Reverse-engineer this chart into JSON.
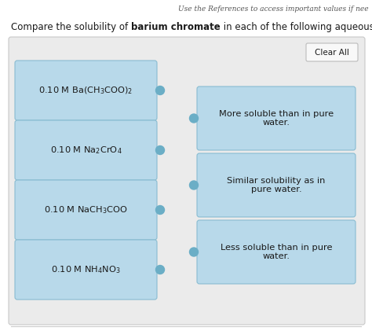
{
  "title_top": "Use the References to access important values if nee",
  "title_prefix": "Compare the solubility of ",
  "title_bold": "barium chromate",
  "title_suffix": " in each of the following aqueous solutions:",
  "clear_all_label": "Clear All",
  "left_labels": [
    "0.10 M Ba(CH$_3$COO)$_2$",
    "0.10 M Na$_2$CrO$_4$",
    "0.10 M NaCH$_3$COO",
    "0.10 M NH$_4$NO$_3$"
  ],
  "right_labels": [
    "More soluble than in pure\nwater.",
    "Similar solubility as in\npure water.",
    "Less soluble than in pure\nwater."
  ],
  "box_fill": "#b8d9ea",
  "box_edge": "#89bcd1",
  "panel_fill": "#ebebeb",
  "panel_edge": "#c8c8c8",
  "btn_fill": "#f8f8f8",
  "btn_edge": "#bbbbbb",
  "dot_color": "#6baec6",
  "text_dark": "#1a1a1a",
  "text_normal": "#333333",
  "bg": "#ffffff",
  "fig_w": 4.74,
  "fig_h": 4.21,
  "dpi": 100
}
